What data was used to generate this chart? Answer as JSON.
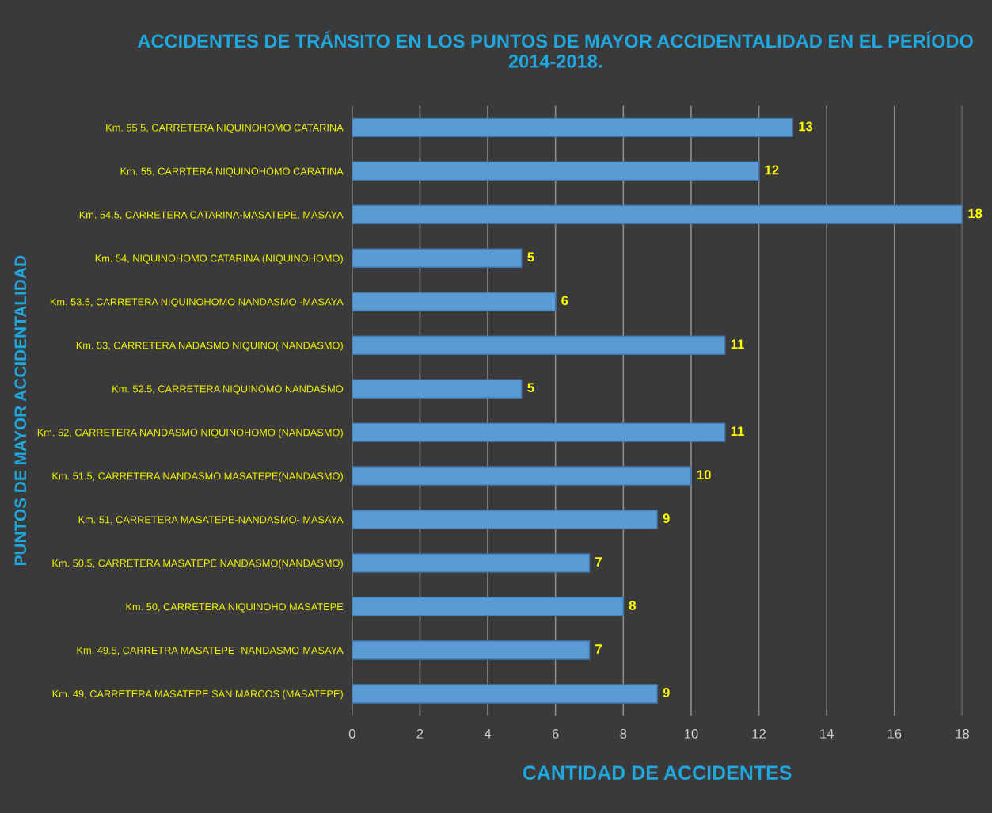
{
  "chart_data": {
    "type": "bar",
    "orientation": "horizontal",
    "title": "ACCIDENTES DE TRÁNSITO EN LOS PUNTOS DE MAYOR ACCIDENTALIDAD EN EL PERÍODO 2014-2018.",
    "xlabel": "CANTIDAD DE ACCIDENTES",
    "ylabel": "PUNTOS DE MAYOR ACCIDENTALIDAD",
    "categories": [
      "Km. 55.5, CARRETERA NIQUINOHOMO CATARINA",
      "Km. 55, CARRTERA NIQUINOHOMO CARATINA",
      "Km. 54.5, CARRETERA CATARINA-MASATEPE, MASAYA",
      "Km. 54, NIQUINOHOMO CATARINA (NIQUINOHOMO)",
      "Km. 53.5, CARRETERA NIQUINOHOMO NANDASMO -MASAYA",
      "Km. 53, CARRETERA NADASMO NIQUINO( NANDASMO)",
      "Km. 52.5, CARRETERA NIQUINOMO NANDASMO",
      "Km. 52, CARRETERA NANDASMO NIQUINOHOMO (NANDASMO)",
      "Km. 51.5, CARRETERA NANDASMO MASATEPE(NANDASMO)",
      "Km. 51, CARRETERA MASATEPE-NANDASMO- MASAYA",
      "Km. 50.5, CARRETERA MASATEPE NANDASMO(NANDASMO)",
      "Km. 50, CARRETERA NIQUINOHO MASATEPE",
      "Km. 49.5, CARRETRA MASATEPE -NANDASMO-MASAYA",
      "Km. 49, CARRETERA MASATEPE SAN MARCOS (MASATEPE)"
    ],
    "values": [
      13,
      12,
      18,
      5,
      6,
      11,
      5,
      11,
      10,
      9,
      7,
      8,
      7,
      9
    ],
    "color": "#5b9bd5",
    "xlim": [
      0,
      18
    ],
    "xticks": [
      0,
      2,
      4,
      6,
      8,
      10,
      12,
      14,
      16,
      18
    ],
    "grid": "x",
    "data_labels": true
  }
}
